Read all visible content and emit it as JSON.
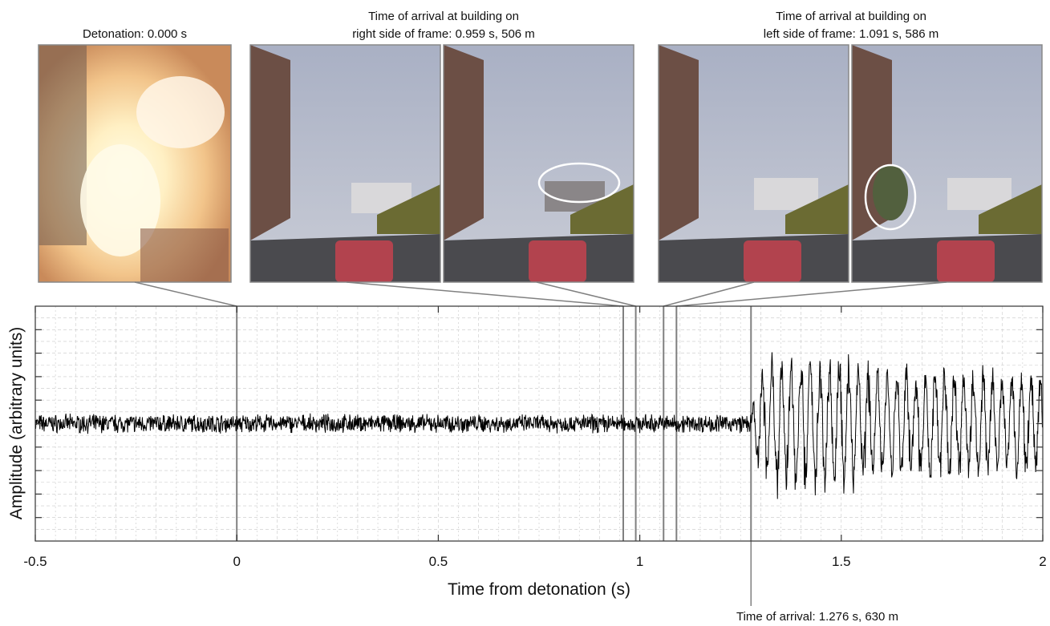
{
  "captions": {
    "detonation": "Detonation: 0.000 s",
    "right_line1": "Time of arrival at building on",
    "right_line2": "right side of frame: 0.959 s, 506 m",
    "left_line1": "Time of arrival at building on",
    "left_line2": "left side of frame: 1.091 s, 586 m",
    "arrival": "Time of arrival: 1.276 s, 630 m"
  },
  "photos": [
    {
      "name": "detonation-frame",
      "scene": "explosion"
    },
    {
      "name": "right-building-frame-before",
      "scene": "street"
    },
    {
      "name": "right-building-frame-after",
      "scene": "street",
      "highlight": "ellipse-right"
    },
    {
      "name": "left-building-frame-before",
      "scene": "street"
    },
    {
      "name": "left-building-frame-after",
      "scene": "street",
      "highlight": "ellipse-left"
    }
  ],
  "chart_data": {
    "type": "line",
    "xlabel": "Time from detonation (s)",
    "ylabel": "Amplitude (arbitrary units)",
    "xlim": [
      -0.5,
      2
    ],
    "xticks": [
      -0.5,
      0,
      0.5,
      1,
      1.5,
      2
    ],
    "xtick_labels": [
      "-0.5",
      "0",
      "0.5",
      "1",
      "1.5",
      "2"
    ],
    "ylim": [
      -4,
      4
    ],
    "grid": true,
    "markers": [
      {
        "x": 0.0,
        "label": "detonation"
      },
      {
        "x": 0.959,
        "label": "right building frame 1"
      },
      {
        "x": 0.99,
        "label": "right building frame 2"
      },
      {
        "x": 1.059,
        "label": "left building frame 1"
      },
      {
        "x": 1.091,
        "label": "left building frame 2"
      },
      {
        "x": 1.276,
        "label": "arrival"
      }
    ],
    "noise_amplitude": 0.25,
    "arrival_time": 1.276,
    "peak_amplitude": 2.7
  },
  "colors": {
    "trace": "#000000",
    "marker": "#808080",
    "grid": "#c8c8c8",
    "frame_border": "#888888",
    "ellipse": "#ffffff"
  }
}
